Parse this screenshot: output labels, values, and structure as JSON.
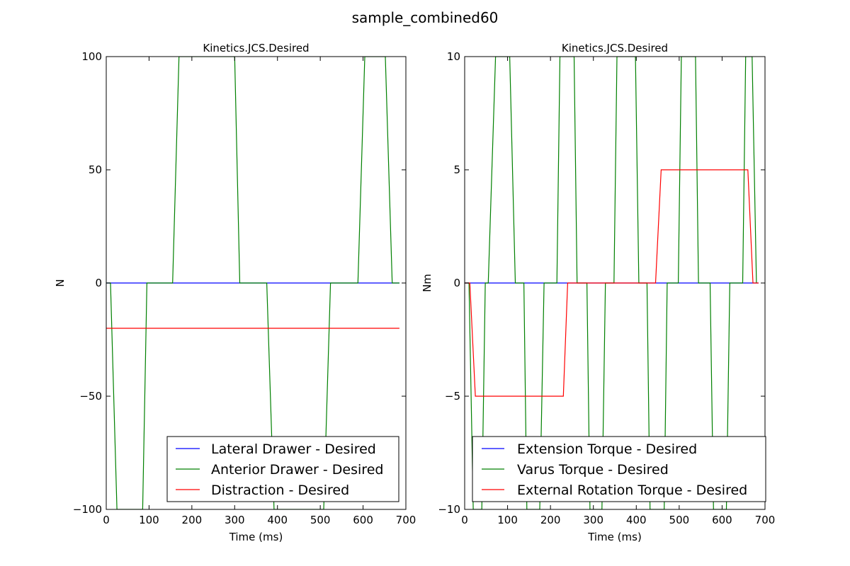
{
  "figure": {
    "suptitle": "sample_combined60"
  },
  "chart_data": [
    {
      "type": "line",
      "title": "Kinetics.JCS.Desired",
      "xlabel": "Time (ms)",
      "ylabel": "N",
      "xlim": [
        0,
        700
      ],
      "ylim": [
        -100,
        100
      ],
      "xticks": [
        "0",
        "100",
        "200",
        "300",
        "400",
        "500",
        "600",
        "700"
      ],
      "yticks": [
        "−100",
        "−50",
        "0",
        "50",
        "100"
      ],
      "grid": false,
      "legend_position": "lower-right",
      "series": [
        {
          "name": "Lateral Drawer - Desired",
          "color": "#0000ff",
          "x": [
            0,
            685
          ],
          "y": [
            0,
            0
          ]
        },
        {
          "name": "Anterior Drawer - Desired",
          "color": "#008000",
          "x": [
            0,
            10,
            25,
            85,
            95,
            155,
            170,
            300,
            312,
            375,
            392,
            508,
            524,
            588,
            604,
            652,
            668,
            685
          ],
          "y": [
            0,
            0,
            -100,
            -100,
            0,
            0,
            100,
            100,
            0,
            0,
            -100,
            -100,
            0,
            0,
            100,
            100,
            0,
            0
          ]
        },
        {
          "name": "Distraction - Desired",
          "color": "#ff0000",
          "x": [
            0,
            685
          ],
          "y": [
            -20,
            -20
          ]
        }
      ]
    },
    {
      "type": "line",
      "title": "Kinetics.JCS.Desired",
      "xlabel": "Time (ms)",
      "ylabel": "Nm",
      "xlim": [
        0,
        700
      ],
      "ylim": [
        -10,
        10
      ],
      "xticks": [
        "0",
        "100",
        "200",
        "300",
        "400",
        "500",
        "600",
        "700"
      ],
      "yticks": [
        "−10",
        "−5",
        "0",
        "5",
        "10"
      ],
      "grid": false,
      "legend_position": "lower-right",
      "series": [
        {
          "name": "Extension Torque - Desired",
          "color": "#0000ff",
          "x": [
            0,
            685
          ],
          "y": [
            0,
            0
          ]
        },
        {
          "name": "Varus Torque - Desired",
          "color": "#008000",
          "x": [
            0,
            10,
            20,
            40,
            48,
            55,
            72,
            105,
            118,
            138,
            145,
            175,
            185,
            215,
            222,
            255,
            262,
            285,
            292,
            320,
            328,
            348,
            355,
            398,
            406,
            425,
            432,
            465,
            472,
            498,
            505,
            538,
            545,
            572,
            580,
            610,
            618,
            648,
            655,
            670,
            680
          ],
          "y": [
            0,
            0,
            -10,
            -10,
            0,
            0,
            10,
            10,
            0,
            0,
            -10,
            -10,
            0,
            0,
            10,
            10,
            0,
            0,
            -10,
            -10,
            0,
            0,
            10,
            10,
            0,
            0,
            -10,
            -10,
            0,
            0,
            10,
            10,
            0,
            0,
            -10,
            -10,
            0,
            0,
            10,
            10,
            0
          ]
        },
        {
          "name": "External Rotation Torque - Desired",
          "color": "#ff0000",
          "x": [
            0,
            12,
            25,
            230,
            240,
            445,
            458,
            660,
            672,
            685
          ],
          "y": [
            0,
            0,
            -5,
            -5,
            0,
            0,
            5,
            5,
            0,
            0
          ]
        }
      ]
    }
  ]
}
